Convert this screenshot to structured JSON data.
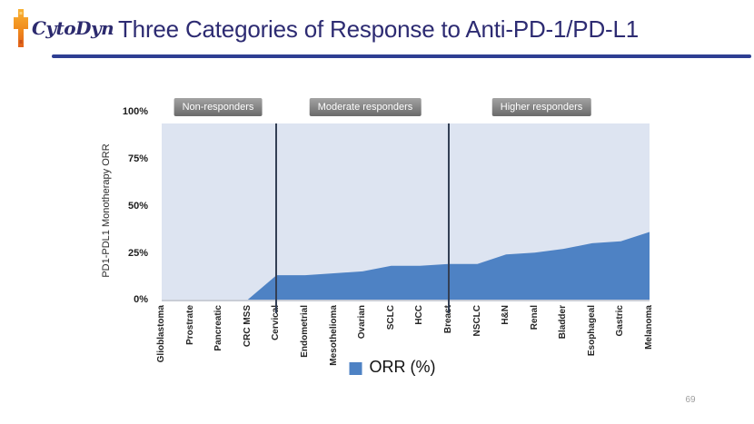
{
  "header": {
    "brand": "CytoDyn",
    "title": "Three Categories of Response to Anti-PD-1/PD-L1"
  },
  "chart_data": {
    "type": "area",
    "title": "Three Categories of Response to Anti-PD-1/PD-L1",
    "ylabel": "PD1-PDL1 Monotherapy ORR",
    "ylim": [
      0,
      100
    ],
    "ytick_labels": [
      "100%",
      "75%",
      "50%",
      "25%",
      "0%"
    ],
    "grid": false,
    "legend_label": "ORR (%)",
    "legend_position": "bottom",
    "categories": [
      "Glioblastoma",
      "Prostrate",
      "Pancreatic",
      "CRC MSS",
      "Cervical",
      "Endometrial",
      "Mesothelioma",
      "Ovarian",
      "SCLC",
      "HCC",
      "Breast",
      "NSCLC",
      "H&N",
      "Renal",
      "Bladder",
      "Esophageal",
      "Gastric",
      "Melanoma"
    ],
    "series": [
      {
        "name": "ORR (%)",
        "values": [
          0,
          0,
          0,
          0,
          13,
          13,
          14,
          15,
          18,
          18,
          19,
          19,
          24,
          25,
          27,
          30,
          31,
          36
        ]
      }
    ],
    "groups": [
      {
        "label": "Non-responders",
        "from": "Glioblastoma",
        "to": "Cervical"
      },
      {
        "label": "Moderate responders",
        "from": "Cervical",
        "to": "Breast"
      },
      {
        "label": "Higher responders",
        "from": "Breast",
        "to": "Melanoma"
      }
    ],
    "divider_categories": [
      "Cervical",
      "Breast"
    ],
    "colors": {
      "area": "#4e82c4",
      "plot_background": "#dde4f1",
      "divider": "#333f55",
      "title_navy": "#2d2b72",
      "header_rule": "#2e3e92",
      "badge_gray": "#7d7d7d"
    }
  },
  "footer": {
    "page_number": "69"
  }
}
